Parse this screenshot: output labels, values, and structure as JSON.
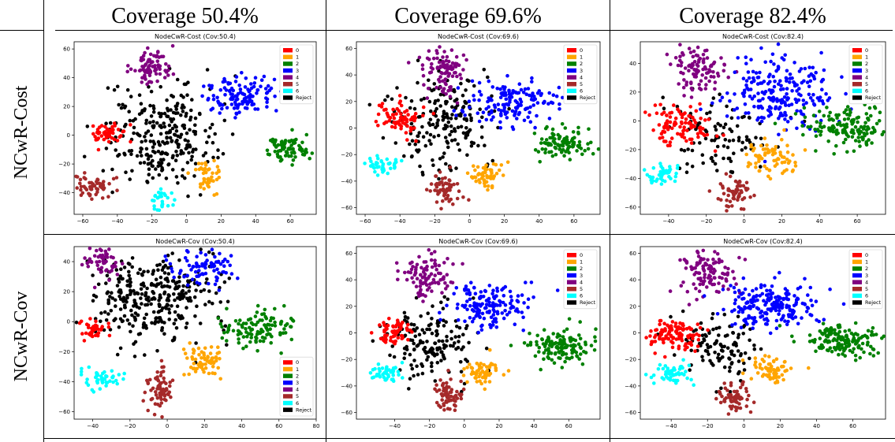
{
  "table": {
    "columns": [
      "Coverage 50.4%",
      "Coverage 69.6%",
      "Coverage 82.4%"
    ],
    "rows": [
      "NCwR-Cost",
      "NCwR-Cov"
    ]
  },
  "legend_entries": [
    "0",
    "1",
    "2",
    "3",
    "4",
    "5",
    "6",
    "Reject"
  ],
  "class_colors": [
    "#ff0000",
    "#ffa500",
    "#008000",
    "#0000ff",
    "#800080",
    "#a52a2a",
    "#00ffff",
    "#000000"
  ],
  "chart_data": [
    {
      "type": "scatter",
      "title": "NodeCwR-Cost (Cov:50.4)",
      "xticks": [
        -60,
        -40,
        -20,
        0,
        20,
        40,
        60
      ],
      "yticks": [
        -40,
        -20,
        0,
        20,
        40,
        60
      ],
      "xlim": [
        -65,
        75
      ],
      "ylim": [
        -55,
        65
      ],
      "legend_position": "upper right",
      "clusters": [
        {
          "label": "4",
          "cx": -20,
          "cy": 48,
          "sx": 6,
          "sy": 6,
          "n": 80
        },
        {
          "label": "3",
          "cx": 30,
          "cy": 28,
          "sx": 10,
          "sy": 6,
          "n": 120
        },
        {
          "label": "0",
          "cx": -45,
          "cy": 2,
          "sx": 5,
          "sy": 4,
          "n": 50
        },
        {
          "label": "2",
          "cx": 58,
          "cy": -10,
          "sx": 7,
          "sy": 5,
          "n": 80
        },
        {
          "label": "5",
          "cx": -55,
          "cy": -35,
          "sx": 6,
          "sy": 4,
          "n": 60
        },
        {
          "label": "1",
          "cx": 12,
          "cy": -30,
          "sx": 4,
          "sy": 5,
          "n": 45
        },
        {
          "label": "6",
          "cx": -15,
          "cy": -45,
          "sx": 3,
          "sy": 5,
          "n": 30
        },
        {
          "label": "Reject",
          "cx": -15,
          "cy": 0,
          "sx": 16,
          "sy": 17,
          "n": 280
        }
      ]
    },
    {
      "type": "scatter",
      "title": "NodeCwR-Cost (Cov:69.6)",
      "xticks": [
        -60,
        -40,
        -20,
        0,
        20,
        40,
        60
      ],
      "yticks": [
        -60,
        -40,
        -20,
        0,
        20,
        40,
        60
      ],
      "xlim": [
        -65,
        75
      ],
      "ylim": [
        -65,
        65
      ],
      "legend_position": "upper right",
      "clusters": [
        {
          "label": "4",
          "cx": -15,
          "cy": 45,
          "sx": 7,
          "sy": 9,
          "n": 90
        },
        {
          "label": "3",
          "cx": 25,
          "cy": 20,
          "sx": 14,
          "sy": 8,
          "n": 150
        },
        {
          "label": "0",
          "cx": -40,
          "cy": 5,
          "sx": 7,
          "sy": 6,
          "n": 70
        },
        {
          "label": "2",
          "cx": 55,
          "cy": -12,
          "sx": 9,
          "sy": 6,
          "n": 100
        },
        {
          "label": "5",
          "cx": -15,
          "cy": -45,
          "sx": 4,
          "sy": 7,
          "n": 60
        },
        {
          "label": "1",
          "cx": 10,
          "cy": -35,
          "sx": 5,
          "sy": 5,
          "n": 55
        },
        {
          "label": "6",
          "cx": -50,
          "cy": -28,
          "sx": 5,
          "sy": 3,
          "n": 40
        },
        {
          "label": "Reject",
          "cx": -15,
          "cy": 5,
          "sx": 15,
          "sy": 18,
          "n": 200
        }
      ]
    },
    {
      "type": "scatter",
      "title": "NodeCwR-Cost (Cov:82.4)",
      "xticks": [
        -40,
        -20,
        0,
        20,
        40,
        60
      ],
      "yticks": [
        -60,
        -40,
        -20,
        0,
        20,
        40
      ],
      "xlim": [
        -55,
        75
      ],
      "ylim": [
        -65,
        55
      ],
      "legend_position": "upper right",
      "clusters": [
        {
          "label": "4",
          "cx": -25,
          "cy": 35,
          "sx": 8,
          "sy": 9,
          "n": 100
        },
        {
          "label": "3",
          "cx": 20,
          "cy": 20,
          "sx": 15,
          "sy": 12,
          "n": 220
        },
        {
          "label": "0",
          "cx": -33,
          "cy": -3,
          "sx": 8,
          "sy": 7,
          "n": 100
        },
        {
          "label": "2",
          "cx": 55,
          "cy": -5,
          "sx": 12,
          "sy": 7,
          "n": 150
        },
        {
          "label": "5",
          "cx": -5,
          "cy": -50,
          "sx": 5,
          "sy": 5,
          "n": 60
        },
        {
          "label": "1",
          "cx": 13,
          "cy": -25,
          "sx": 6,
          "sy": 6,
          "n": 70
        },
        {
          "label": "6",
          "cx": -42,
          "cy": -37,
          "sx": 5,
          "sy": 4,
          "n": 45
        },
        {
          "label": "Reject",
          "cx": -10,
          "cy": -10,
          "sx": 14,
          "sy": 14,
          "n": 100
        }
      ]
    },
    {
      "type": "scatter",
      "title": "NodeCwR-Cov (Cov:50.4)",
      "xticks": [
        -40,
        -20,
        0,
        20,
        40,
        60,
        80
      ],
      "yticks": [
        -60,
        -40,
        -20,
        0,
        20,
        40
      ],
      "xlim": [
        -50,
        80
      ],
      "ylim": [
        -65,
        50
      ],
      "legend_position": "lower right",
      "clusters": [
        {
          "label": "4",
          "cx": -35,
          "cy": 40,
          "sx": 5,
          "sy": 6,
          "n": 55
        },
        {
          "label": "3",
          "cx": 20,
          "cy": 35,
          "sx": 10,
          "sy": 6,
          "n": 80
        },
        {
          "label": "0",
          "cx": -40,
          "cy": -5,
          "sx": 4,
          "sy": 3,
          "n": 40
        },
        {
          "label": "2",
          "cx": 50,
          "cy": -5,
          "sx": 10,
          "sy": 6,
          "n": 110
        },
        {
          "label": "5",
          "cx": -5,
          "cy": -45,
          "sx": 4,
          "sy": 7,
          "n": 70
        },
        {
          "label": "1",
          "cx": 20,
          "cy": -27,
          "sx": 6,
          "sy": 5,
          "n": 70
        },
        {
          "label": "6",
          "cx": -35,
          "cy": -38,
          "sx": 5,
          "sy": 4,
          "n": 45
        },
        {
          "label": "Reject",
          "cx": -8,
          "cy": 15,
          "sx": 17,
          "sy": 15,
          "n": 330
        }
      ]
    },
    {
      "type": "scatter",
      "title": "NodeCwR-Cov (Cov:69.6)",
      "xticks": [
        -40,
        -20,
        0,
        20,
        40,
        60
      ],
      "yticks": [
        -60,
        -40,
        -20,
        0,
        20,
        40,
        60
      ],
      "xlim": [
        -62,
        78
      ],
      "ylim": [
        -65,
        65
      ],
      "legend_position": "upper right",
      "clusters": [
        {
          "label": "4",
          "cx": -22,
          "cy": 42,
          "sx": 7,
          "sy": 9,
          "n": 100
        },
        {
          "label": "3",
          "cx": 15,
          "cy": 20,
          "sx": 13,
          "sy": 8,
          "n": 150
        },
        {
          "label": "0",
          "cx": -40,
          "cy": 0,
          "sx": 6,
          "sy": 5,
          "n": 60
        },
        {
          "label": "2",
          "cx": 55,
          "cy": -10,
          "sx": 10,
          "sy": 6,
          "n": 130
        },
        {
          "label": "5",
          "cx": -10,
          "cy": -45,
          "sx": 4,
          "sy": 7,
          "n": 65
        },
        {
          "label": "1",
          "cx": 10,
          "cy": -30,
          "sx": 5,
          "sy": 5,
          "n": 60
        },
        {
          "label": "6",
          "cx": -45,
          "cy": -30,
          "sx": 5,
          "sy": 3,
          "n": 45
        },
        {
          "label": "Reject",
          "cx": -18,
          "cy": -5,
          "sx": 13,
          "sy": 15,
          "n": 160
        }
      ]
    },
    {
      "type": "scatter",
      "title": "NodeCwR-Cov (Cov:82.4)",
      "xticks": [
        -40,
        -20,
        0,
        20,
        40,
        60
      ],
      "yticks": [
        -60,
        -40,
        -20,
        0,
        20,
        40,
        60
      ],
      "xlim": [
        -57,
        78
      ],
      "ylim": [
        -65,
        65
      ],
      "legend_position": "upper right",
      "clusters": [
        {
          "label": "4",
          "cx": -20,
          "cy": 45,
          "sx": 8,
          "sy": 10,
          "n": 110
        },
        {
          "label": "3",
          "cx": 15,
          "cy": 20,
          "sx": 14,
          "sy": 9,
          "n": 200
        },
        {
          "label": "0",
          "cx": -38,
          "cy": -2,
          "sx": 8,
          "sy": 6,
          "n": 110
        },
        {
          "label": "2",
          "cx": 55,
          "cy": -5,
          "sx": 12,
          "sy": 6,
          "n": 150
        },
        {
          "label": "5",
          "cx": -5,
          "cy": -48,
          "sx": 5,
          "sy": 6,
          "n": 65
        },
        {
          "label": "1",
          "cx": 15,
          "cy": -28,
          "sx": 6,
          "sy": 5,
          "n": 65
        },
        {
          "label": "6",
          "cx": -40,
          "cy": -30,
          "sx": 6,
          "sy": 4,
          "n": 55
        },
        {
          "label": "Reject",
          "cx": -15,
          "cy": -10,
          "sx": 12,
          "sy": 13,
          "n": 110
        }
      ]
    }
  ]
}
